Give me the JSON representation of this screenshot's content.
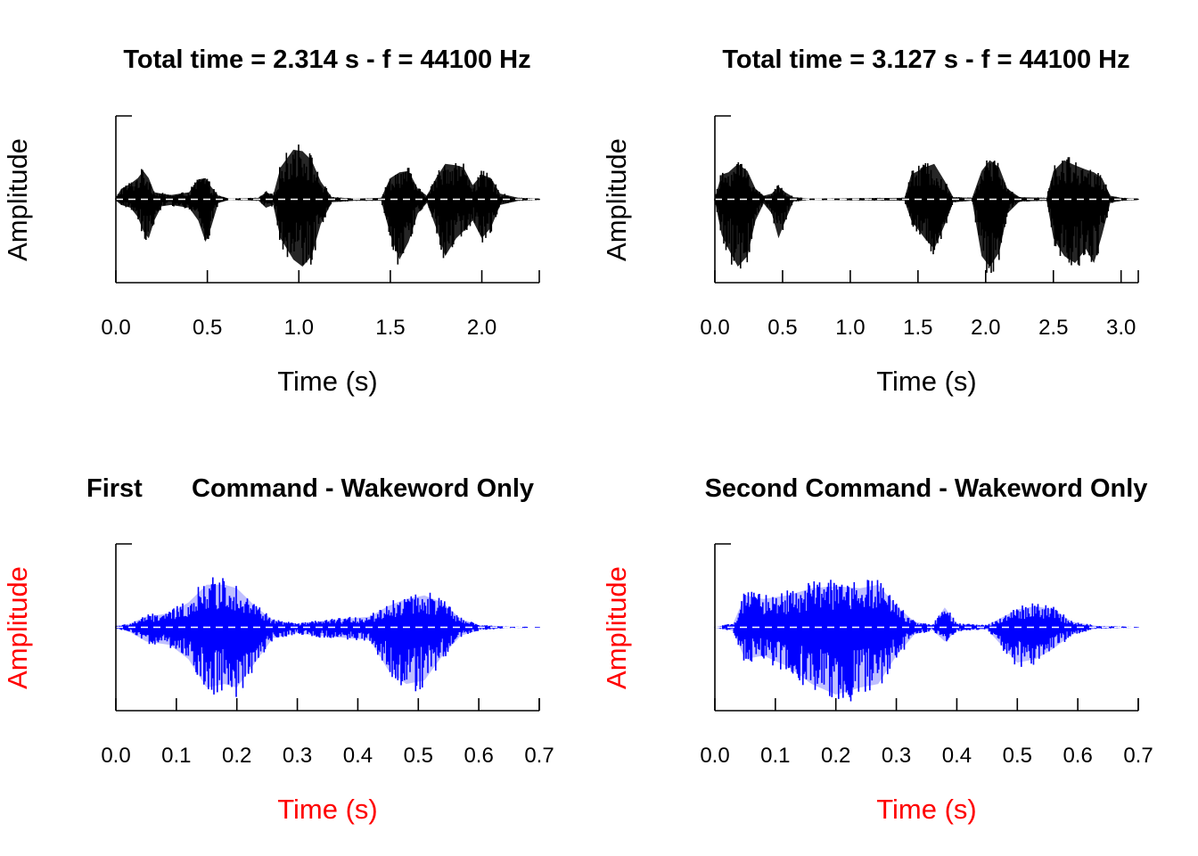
{
  "colors": {
    "black_waveform": "#000000",
    "blue_waveform": "#0000ff",
    "red_label": "#ff0000",
    "axis": "#000000",
    "zero_line": "#ffffff"
  },
  "panel_titles": {
    "p1": "Total time = 2.314 s - f = 44100 Hz",
    "p2": "Total time = 3.127 s - f = 44100 Hz",
    "p3_a": "First",
    "p3_b": "Command - Wakeword Only",
    "p4": "Second Command - Wakeword Only"
  },
  "chart_data": [
    {
      "type": "line",
      "subtype": "waveform",
      "title": "Total time = 2.314 s - f = 44100 Hz",
      "xlabel": "Time (s)",
      "ylabel": "Amplitude",
      "xlim": [
        0,
        2.314
      ],
      "ylim": [
        -1,
        1
      ],
      "x_ticks": [
        0.0,
        0.5,
        1.0,
        1.5,
        2.0
      ],
      "x_tick_labels": [
        "0.0",
        "0.5",
        "1.0",
        "1.5",
        "2.0"
      ],
      "color": "#000000",
      "label_color": "#000000",
      "envelope": [
        {
          "x": 0.0,
          "max": 0.02,
          "min": -0.02
        },
        {
          "x": 0.03,
          "max": 0.15,
          "min": -0.08
        },
        {
          "x": 0.08,
          "max": 0.22,
          "min": -0.12
        },
        {
          "x": 0.12,
          "max": 0.3,
          "min": -0.25
        },
        {
          "x": 0.15,
          "max": 0.4,
          "min": -0.45
        },
        {
          "x": 0.18,
          "max": 0.3,
          "min": -0.55
        },
        {
          "x": 0.21,
          "max": 0.1,
          "min": -0.3
        },
        {
          "x": 0.25,
          "max": 0.08,
          "min": -0.1
        },
        {
          "x": 0.3,
          "max": 0.06,
          "min": -0.08
        },
        {
          "x": 0.4,
          "max": 0.1,
          "min": -0.12
        },
        {
          "x": 0.45,
          "max": 0.28,
          "min": -0.3
        },
        {
          "x": 0.49,
          "max": 0.3,
          "min": -0.6
        },
        {
          "x": 0.52,
          "max": 0.18,
          "min": -0.4
        },
        {
          "x": 0.56,
          "max": 0.05,
          "min": -0.05
        },
        {
          "x": 0.62,
          "max": 0.01,
          "min": -0.01
        },
        {
          "x": 0.78,
          "max": 0.02,
          "min": -0.02
        },
        {
          "x": 0.82,
          "max": 0.1,
          "min": -0.12
        },
        {
          "x": 0.86,
          "max": 0.06,
          "min": -0.08
        },
        {
          "x": 0.9,
          "max": 0.45,
          "min": -0.55
        },
        {
          "x": 0.97,
          "max": 0.7,
          "min": -0.85
        },
        {
          "x": 1.02,
          "max": 0.68,
          "min": -0.95
        },
        {
          "x": 1.07,
          "max": 0.55,
          "min": -0.8
        },
        {
          "x": 1.12,
          "max": 0.25,
          "min": -0.35
        },
        {
          "x": 1.18,
          "max": 0.03,
          "min": -0.04
        },
        {
          "x": 1.3,
          "max": 0.01,
          "min": -0.02
        },
        {
          "x": 1.45,
          "max": 0.02,
          "min": -0.02
        },
        {
          "x": 1.5,
          "max": 0.3,
          "min": -0.5
        },
        {
          "x": 1.55,
          "max": 0.38,
          "min": -0.85
        },
        {
          "x": 1.6,
          "max": 0.4,
          "min": -0.6
        },
        {
          "x": 1.65,
          "max": 0.15,
          "min": -0.2
        },
        {
          "x": 1.7,
          "max": 0.05,
          "min": -0.05
        },
        {
          "x": 1.75,
          "max": 0.3,
          "min": -0.4
        },
        {
          "x": 1.8,
          "max": 0.5,
          "min": -0.8
        },
        {
          "x": 1.86,
          "max": 0.48,
          "min": -0.55
        },
        {
          "x": 1.9,
          "max": 0.45,
          "min": -0.45
        },
        {
          "x": 1.95,
          "max": 0.2,
          "min": -0.3
        },
        {
          "x": 2.0,
          "max": 0.35,
          "min": -0.55
        },
        {
          "x": 2.05,
          "max": 0.3,
          "min": -0.4
        },
        {
          "x": 2.1,
          "max": 0.08,
          "min": -0.08
        },
        {
          "x": 2.2,
          "max": 0.02,
          "min": -0.02
        },
        {
          "x": 2.314,
          "max": 0.01,
          "min": -0.01
        }
      ]
    },
    {
      "type": "line",
      "subtype": "waveform",
      "title": "Total time = 3.127 s - f = 44100 Hz",
      "xlabel": "Time (s)",
      "ylabel": "Amplitude",
      "xlim": [
        0,
        3.127
      ],
      "ylim": [
        -1,
        1
      ],
      "x_ticks": [
        0.0,
        0.5,
        1.0,
        1.5,
        2.0,
        2.5,
        3.0
      ],
      "x_tick_labels": [
        "0.0",
        "0.5",
        "1.0",
        "1.5",
        "2.0",
        "2.5",
        "3.0"
      ],
      "color": "#000000",
      "label_color": "#000000",
      "envelope": [
        {
          "x": 0.0,
          "max": 0.02,
          "min": -0.02
        },
        {
          "x": 0.05,
          "max": 0.35,
          "min": -0.5
        },
        {
          "x": 0.1,
          "max": 0.38,
          "min": -0.7
        },
        {
          "x": 0.17,
          "max": 0.5,
          "min": -0.95
        },
        {
          "x": 0.24,
          "max": 0.4,
          "min": -0.8
        },
        {
          "x": 0.3,
          "max": 0.15,
          "min": -0.3
        },
        {
          "x": 0.36,
          "max": 0.05,
          "min": -0.06
        },
        {
          "x": 0.42,
          "max": 0.08,
          "min": -0.2
        },
        {
          "x": 0.47,
          "max": 0.18,
          "min": -0.55
        },
        {
          "x": 0.52,
          "max": 0.1,
          "min": -0.3
        },
        {
          "x": 0.58,
          "max": 0.03,
          "min": -0.03
        },
        {
          "x": 0.7,
          "max": 0.01,
          "min": -0.01
        },
        {
          "x": 1.4,
          "max": 0.02,
          "min": -0.02
        },
        {
          "x": 1.45,
          "max": 0.35,
          "min": -0.3
        },
        {
          "x": 1.55,
          "max": 0.45,
          "min": -0.55
        },
        {
          "x": 1.62,
          "max": 0.5,
          "min": -0.7
        },
        {
          "x": 1.7,
          "max": 0.25,
          "min": -0.35
        },
        {
          "x": 1.76,
          "max": 0.03,
          "min": -0.04
        },
        {
          "x": 1.9,
          "max": 0.02,
          "min": -0.02
        },
        {
          "x": 1.97,
          "max": 0.4,
          "min": -0.8
        },
        {
          "x": 2.03,
          "max": 0.55,
          "min": -0.95
        },
        {
          "x": 2.1,
          "max": 0.45,
          "min": -0.75
        },
        {
          "x": 2.16,
          "max": 0.15,
          "min": -0.2
        },
        {
          "x": 2.25,
          "max": 0.03,
          "min": -0.03
        },
        {
          "x": 2.45,
          "max": 0.02,
          "min": -0.02
        },
        {
          "x": 2.5,
          "max": 0.4,
          "min": -0.55
        },
        {
          "x": 2.58,
          "max": 0.55,
          "min": -0.8
        },
        {
          "x": 2.66,
          "max": 0.48,
          "min": -0.9
        },
        {
          "x": 2.74,
          "max": 0.42,
          "min": -0.7
        },
        {
          "x": 2.8,
          "max": 0.38,
          "min": -0.9
        },
        {
          "x": 2.86,
          "max": 0.3,
          "min": -0.5
        },
        {
          "x": 2.92,
          "max": 0.05,
          "min": -0.05
        },
        {
          "x": 3.0,
          "max": 0.02,
          "min": -0.02
        },
        {
          "x": 3.127,
          "max": 0.01,
          "min": -0.01
        }
      ]
    },
    {
      "type": "line",
      "subtype": "waveform",
      "title": "First      Command - Wakeword Only",
      "xlabel": "Time (s)",
      "ylabel": "Amplitude",
      "xlim": [
        0,
        0.7
      ],
      "ylim": [
        -1,
        1
      ],
      "x_ticks": [
        0.0,
        0.1,
        0.2,
        0.3,
        0.4,
        0.5,
        0.6,
        0.7
      ],
      "x_tick_labels": [
        "0.0",
        "0.1",
        "0.2",
        "0.3",
        "0.4",
        "0.5",
        "0.6",
        "0.7"
      ],
      "color": "#0000ff",
      "label_color": "#ff0000",
      "envelope": [
        {
          "x": 0.0,
          "max": 0.02,
          "min": -0.02
        },
        {
          "x": 0.02,
          "max": 0.04,
          "min": -0.05
        },
        {
          "x": 0.05,
          "max": 0.15,
          "min": -0.2
        },
        {
          "x": 0.09,
          "max": 0.2,
          "min": -0.25
        },
        {
          "x": 0.12,
          "max": 0.35,
          "min": -0.45
        },
        {
          "x": 0.15,
          "max": 0.6,
          "min": -0.85
        },
        {
          "x": 0.18,
          "max": 0.6,
          "min": -0.8
        },
        {
          "x": 0.2,
          "max": 0.55,
          "min": -0.85
        },
        {
          "x": 0.23,
          "max": 0.3,
          "min": -0.5
        },
        {
          "x": 0.26,
          "max": 0.1,
          "min": -0.15
        },
        {
          "x": 0.3,
          "max": 0.05,
          "min": -0.08
        },
        {
          "x": 0.33,
          "max": 0.08,
          "min": -0.12
        },
        {
          "x": 0.38,
          "max": 0.12,
          "min": -0.15
        },
        {
          "x": 0.42,
          "max": 0.15,
          "min": -0.18
        },
        {
          "x": 0.45,
          "max": 0.3,
          "min": -0.6
        },
        {
          "x": 0.48,
          "max": 0.4,
          "min": -0.8
        },
        {
          "x": 0.51,
          "max": 0.45,
          "min": -0.75
        },
        {
          "x": 0.54,
          "max": 0.35,
          "min": -0.4
        },
        {
          "x": 0.57,
          "max": 0.12,
          "min": -0.12
        },
        {
          "x": 0.6,
          "max": 0.03,
          "min": -0.04
        },
        {
          "x": 0.65,
          "max": 0.01,
          "min": -0.01
        },
        {
          "x": 0.7,
          "max": 0.005,
          "min": -0.005
        }
      ]
    },
    {
      "type": "line",
      "subtype": "waveform",
      "title": "Second Command - Wakeword Only",
      "xlabel": "Time (s)",
      "ylabel": "Amplitude",
      "xlim": [
        0,
        0.7
      ],
      "ylim": [
        -1,
        1
      ],
      "x_ticks": [
        0.0,
        0.1,
        0.2,
        0.3,
        0.4,
        0.5,
        0.6,
        0.7
      ],
      "x_tick_labels": [
        "0.0",
        "0.1",
        "0.2",
        "0.3",
        "0.4",
        "0.5",
        "0.6",
        "0.7"
      ],
      "color": "#0000ff",
      "label_color": "#ff0000",
      "envelope": [
        {
          "x": 0.0,
          "max": 0.005,
          "min": -0.005
        },
        {
          "x": 0.03,
          "max": 0.05,
          "min": -0.05
        },
        {
          "x": 0.05,
          "max": 0.45,
          "min": -0.45
        },
        {
          "x": 0.08,
          "max": 0.4,
          "min": -0.4
        },
        {
          "x": 0.12,
          "max": 0.45,
          "min": -0.55
        },
        {
          "x": 0.16,
          "max": 0.55,
          "min": -0.8
        },
        {
          "x": 0.2,
          "max": 0.58,
          "min": -0.95
        },
        {
          "x": 0.24,
          "max": 0.55,
          "min": -0.85
        },
        {
          "x": 0.27,
          "max": 0.6,
          "min": -0.8
        },
        {
          "x": 0.3,
          "max": 0.3,
          "min": -0.4
        },
        {
          "x": 0.33,
          "max": 0.08,
          "min": -0.1
        },
        {
          "x": 0.36,
          "max": 0.03,
          "min": -0.04
        },
        {
          "x": 0.38,
          "max": 0.28,
          "min": -0.2
        },
        {
          "x": 0.4,
          "max": 0.05,
          "min": -0.05
        },
        {
          "x": 0.45,
          "max": 0.03,
          "min": -0.03
        },
        {
          "x": 0.5,
          "max": 0.25,
          "min": -0.5
        },
        {
          "x": 0.53,
          "max": 0.3,
          "min": -0.45
        },
        {
          "x": 0.56,
          "max": 0.25,
          "min": -0.3
        },
        {
          "x": 0.59,
          "max": 0.08,
          "min": -0.1
        },
        {
          "x": 0.63,
          "max": 0.02,
          "min": -0.02
        },
        {
          "x": 0.7,
          "max": 0.005,
          "min": -0.005
        }
      ]
    }
  ]
}
